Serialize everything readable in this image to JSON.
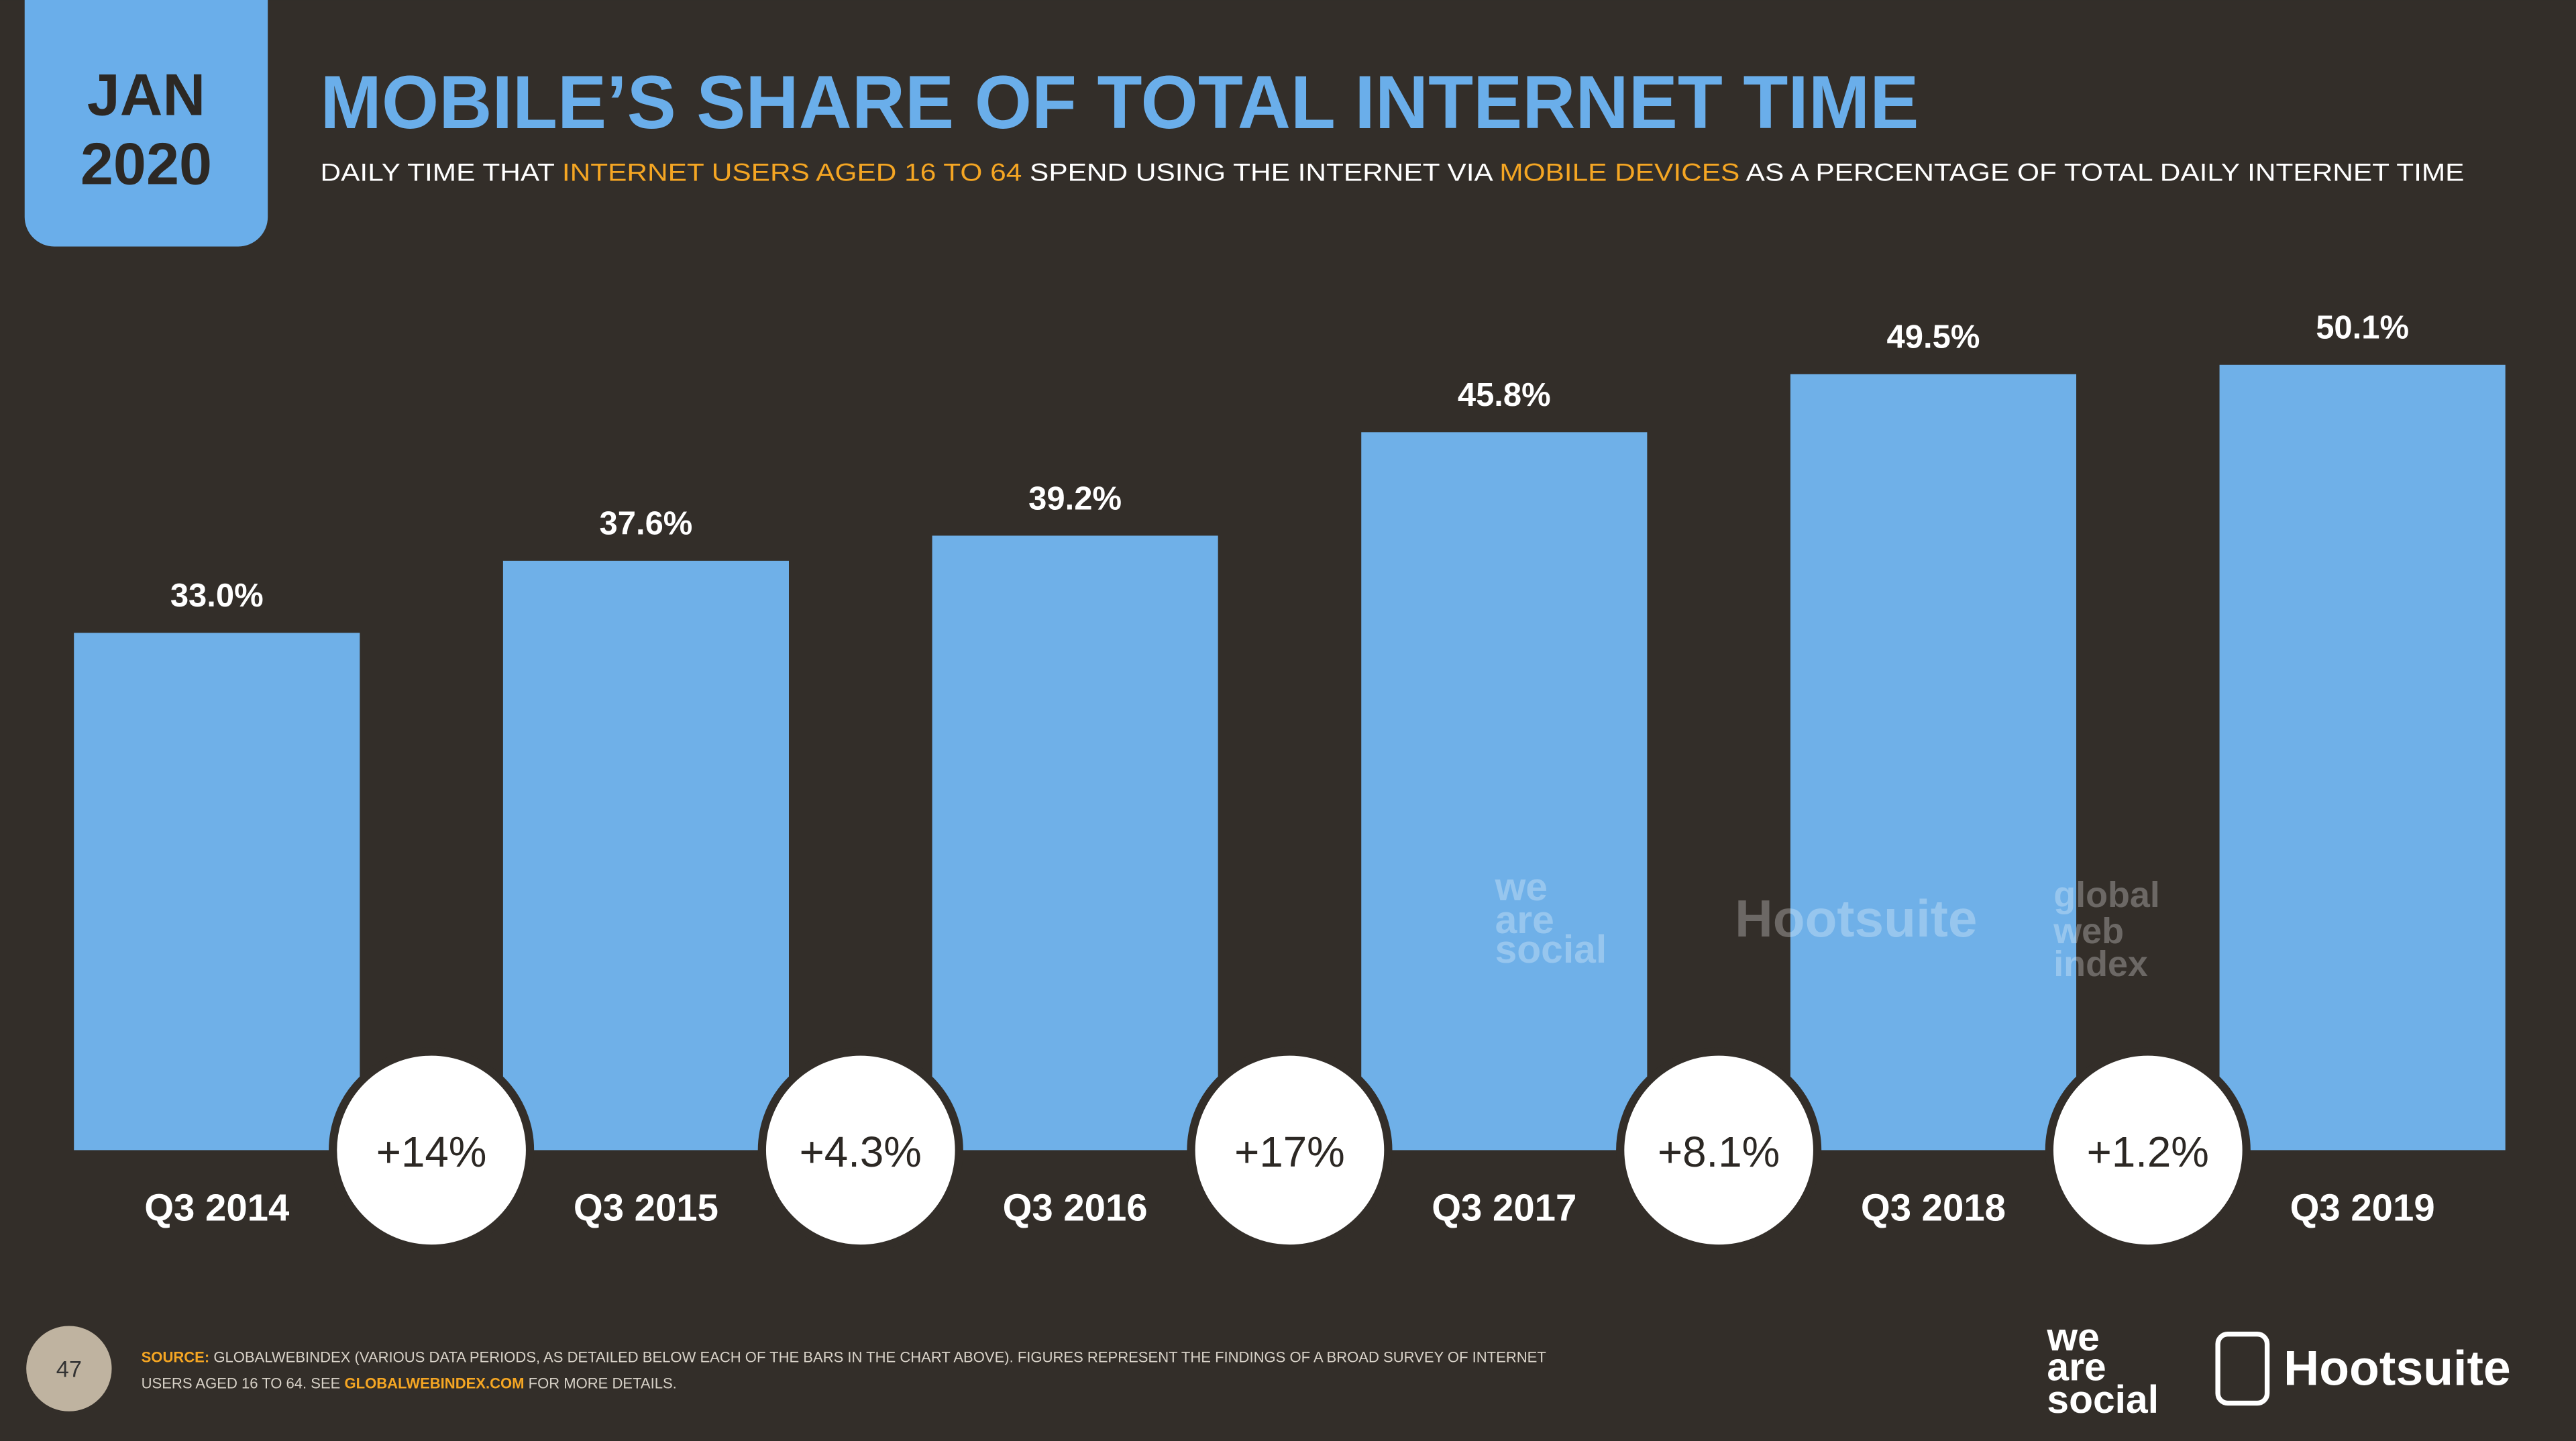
{
  "badge": {
    "month": "JAN",
    "year": "2020"
  },
  "chart_data": {
    "type": "bar",
    "title": "MOBILE’S SHARE OF TOTAL INTERNET TIME",
    "subtitle_parts": [
      "DAILY TIME THAT ",
      "INTERNET USERS AGED 16 TO 64",
      " SPEND USING THE INTERNET VIA ",
      "MOBILE DEVICES",
      " AS A PERCENTAGE OF TOTAL DAILY INTERNET TIME"
    ],
    "categories": [
      "Q3 2014",
      "Q3 2015",
      "Q3 2016",
      "Q3 2017",
      "Q3 2018",
      "Q3 2019"
    ],
    "values": [
      33.0,
      37.6,
      39.2,
      45.8,
      49.5,
      50.1
    ],
    "value_labels": [
      "33.0%",
      "37.6%",
      "39.2%",
      "45.8%",
      "49.5%",
      "50.1%"
    ],
    "changes": [
      "+14%",
      "+4.3%",
      "+17%",
      "+8.1%",
      "+1.2%"
    ],
    "color": "#6fb0e8"
  },
  "footer": {
    "page": "47",
    "source_label": "SOURCE:",
    "source_line1": " GLOBALWEBINDEX (VARIOUS DATA PERIODS, AS DETAILED BELOW EACH OF THE BARS IN THE CHART ABOVE). FIGURES REPRESENT THE FINDINGS OF A BROAD SURVEY OF INTERNET",
    "source_line2": "USERS AGED 16 TO 64. SEE ",
    "source_link": "GLOBALWEBINDEX.COM",
    "source_end": " FOR MORE DETAILS.",
    "logo_was": [
      "we",
      "are",
      "social"
    ],
    "logo_hootsuite": "Hootsuite"
  },
  "watermark": {
    "was": [
      "we",
      "are",
      "social"
    ],
    "hootsuite": "Hootsuite",
    "gwi": [
      "global",
      "web",
      "index"
    ]
  }
}
